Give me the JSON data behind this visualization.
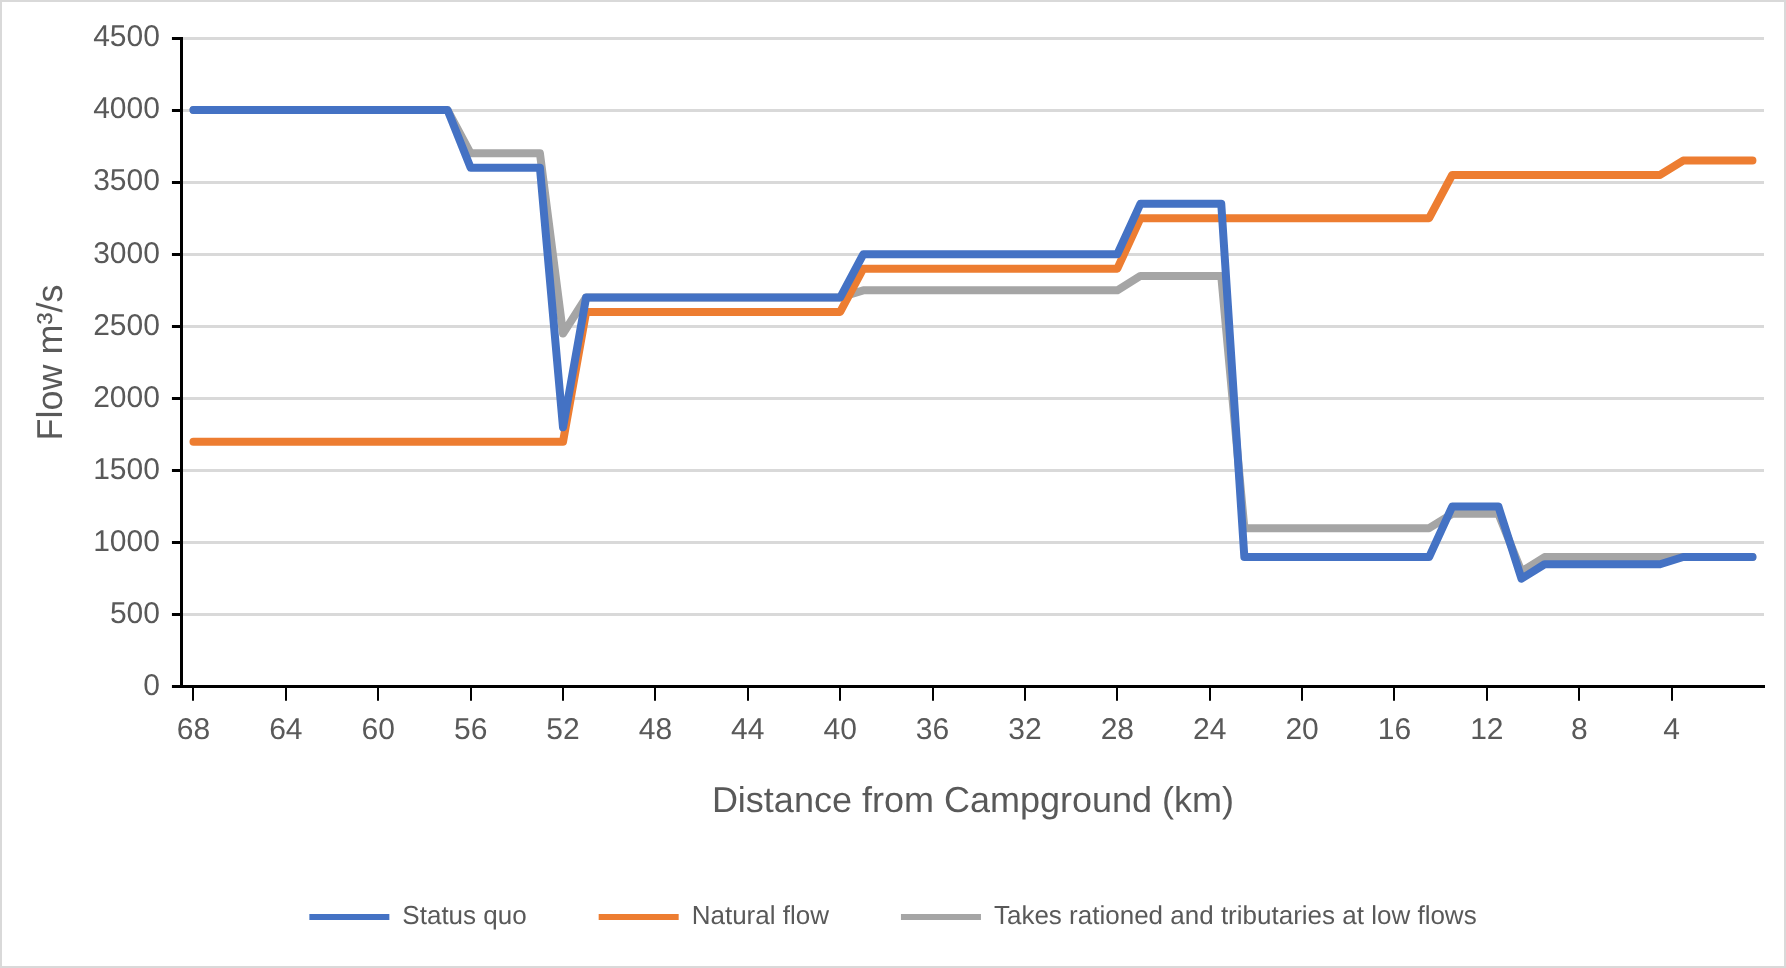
{
  "chart_data": {
    "type": "line",
    "xlabel": "Distance from Campground (km)",
    "ylabel": "Flow m³/s",
    "xlim": [
      68.5,
      0
    ],
    "xticks": [
      68,
      64,
      60,
      56,
      52,
      48,
      44,
      40,
      36,
      32,
      28,
      24,
      20,
      16,
      12,
      8,
      4
    ],
    "ylim": [
      0,
      4500
    ],
    "yticks": [
      0,
      500,
      1000,
      1500,
      2000,
      2500,
      3000,
      3500,
      4000,
      4500
    ],
    "grid": "y",
    "legend": "bottom",
    "marker": "none",
    "line_style": "solid",
    "series": [
      {
        "name": "Status quo",
        "color": "#4472c4",
        "x": [
          68,
          57,
          56,
          53,
          52,
          51,
          40,
          39,
          28,
          27,
          23.5,
          22.5,
          14.5,
          13.5,
          11.5,
          10.5,
          9.5,
          4.5,
          3.5,
          0.5
        ],
        "values": [
          4000,
          4000,
          3600,
          3600,
          1800,
          2700,
          2700,
          3000,
          3000,
          3350,
          3350,
          900,
          900,
          1250,
          1250,
          750,
          850,
          850,
          900,
          900
        ]
      },
      {
        "name": "Natural flow",
        "color": "#ed7d31",
        "x": [
          68,
          52,
          51,
          40,
          39,
          28,
          27,
          14.5,
          13.5,
          4.5,
          3.5,
          0.5
        ],
        "values": [
          1700,
          1700,
          2600,
          2600,
          2900,
          2900,
          3250,
          3250,
          3550,
          3550,
          3650,
          3650
        ]
      },
      {
        "name": "Takes rationed and tributaries at low flows",
        "color": "#a5a5a5",
        "x": [
          68,
          57,
          56,
          53,
          52,
          51,
          40,
          39,
          28,
          27,
          23.5,
          22.5,
          14.5,
          13.5,
          11.5,
          10.5,
          9.5,
          0.5
        ],
        "values": [
          4000,
          4000,
          3700,
          3700,
          2450,
          2700,
          2700,
          2750,
          2750,
          2850,
          2850,
          1100,
          1100,
          1200,
          1200,
          800,
          900,
          900
        ]
      }
    ]
  }
}
